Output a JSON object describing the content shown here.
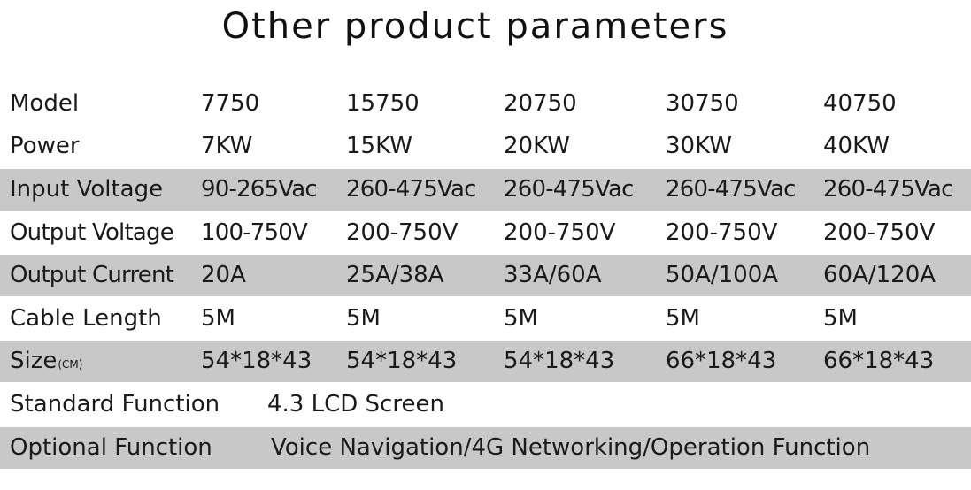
{
  "title": "Other product parameters",
  "table": {
    "rows": [
      {
        "label": "Model",
        "values": [
          "7750",
          "15750",
          "20750",
          "30750",
          "40750"
        ],
        "shaded": false
      },
      {
        "label": "Power",
        "values": [
          "7KW",
          "15KW",
          "20KW",
          "30KW",
          "40KW"
        ],
        "shaded": false
      },
      {
        "label": "Input Voltage",
        "values": [
          "90-265Vac",
          "260-475Vac",
          "260-475Vac",
          "260-475Vac",
          "260-475Vac"
        ],
        "shaded": true
      },
      {
        "label": "Output Voltage",
        "values": [
          "100-750V",
          "200-750V",
          "200-750V",
          "200-750V",
          "200-750V"
        ],
        "shaded": false
      },
      {
        "label": "Output Current",
        "values": [
          "20A",
          "25A/38A",
          "33A/60A",
          "50A/100A",
          "60A/120A"
        ],
        "shaded": true
      },
      {
        "label": "Cable Length",
        "values": [
          "5M",
          "5M",
          "5M",
          "5M",
          "5M"
        ],
        "shaded": false
      },
      {
        "label": "Size",
        "unit": "(CM)",
        "values": [
          "54*18*43",
          "54*18*43",
          "54*18*43",
          "66*18*43",
          "66*18*43"
        ],
        "shaded": true
      }
    ],
    "standard_function": {
      "label": "Standard Function",
      "value": "4.3 LCD Screen"
    },
    "optional_function": {
      "label": "Optional Function",
      "value": "Voice Navigation/4G Networking/Operation Function"
    }
  },
  "colors": {
    "shaded_row": "#c8c8c8",
    "text": "#1a1a1a",
    "background": "#ffffff"
  }
}
